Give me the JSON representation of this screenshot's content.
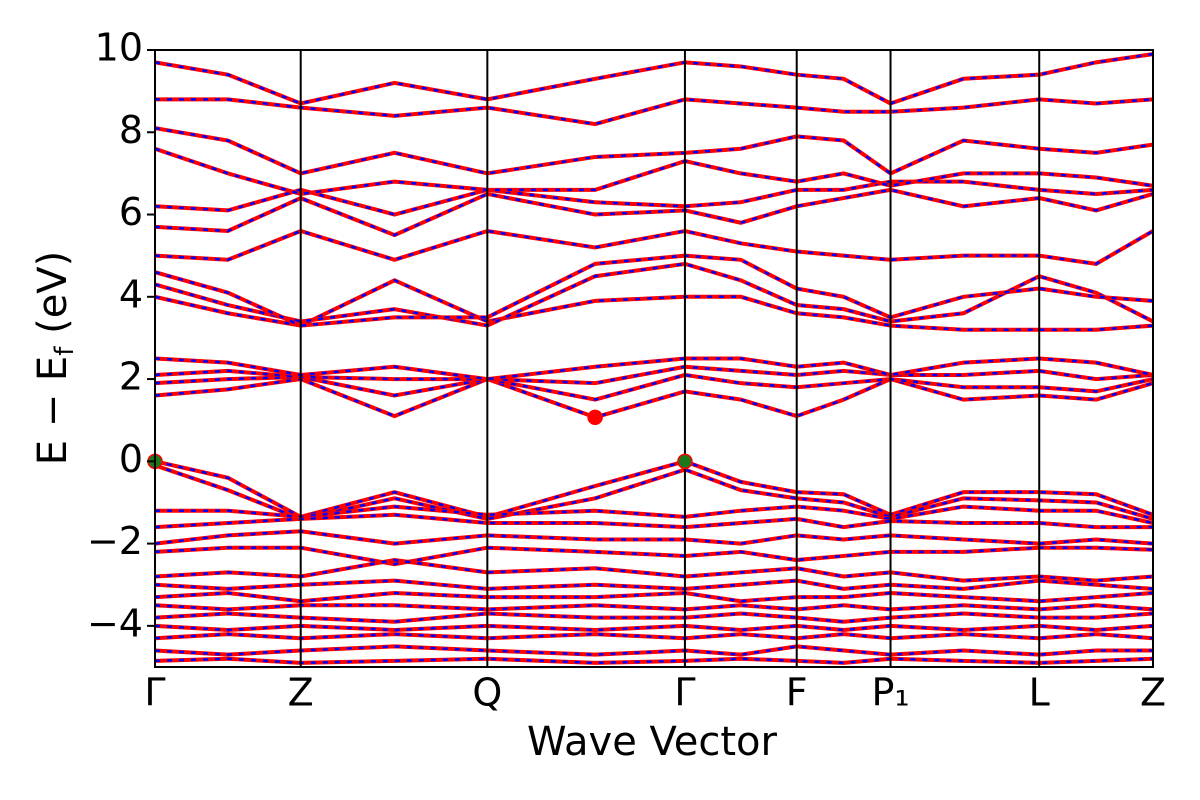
{
  "chart_data": {
    "type": "bandstructure",
    "xlabel": "Wave Vector",
    "ylabel_parts": [
      "E − E",
      "f",
      " (eV)"
    ],
    "xlim": [
      0,
      1
    ],
    "ylim": [
      -5,
      10
    ],
    "xticks": [
      {
        "value": 0,
        "label": "Γ"
      },
      {
        "value": 0.146,
        "label": "Z"
      },
      {
        "value": 0.333,
        "label": "Q"
      },
      {
        "value": 0.531,
        "label": "Γ"
      },
      {
        "value": 0.643,
        "label": "F"
      },
      {
        "value": 0.737,
        "label": "P₁"
      },
      {
        "value": 0.886,
        "label": "L"
      },
      {
        "value": 1,
        "label": "Z"
      }
    ],
    "yticks": [
      {
        "value": -4,
        "label": "−4"
      },
      {
        "value": -2,
        "label": "−2"
      },
      0,
      2,
      4,
      6,
      8,
      10
    ],
    "x": [
      0,
      0.073,
      0.146,
      0.24,
      0.333,
      0.441,
      0.531,
      0.587,
      0.643,
      0.69,
      0.737,
      0.81,
      0.886,
      0.943,
      1
    ],
    "colors": [
      "#ff0000",
      "#0000ff"
    ],
    "bands": [
      [
        0,
        -0.4,
        -1.35,
        -0.75,
        -1.35,
        -0.6,
        0,
        -0.5,
        -0.75,
        -0.8,
        -1.3,
        -0.75,
        -0.75,
        -0.8,
        -1.3
      ],
      [
        -0.1,
        -0.7,
        -1.4,
        -0.9,
        -1.4,
        -0.9,
        -0.2,
        -0.7,
        -0.9,
        -1.0,
        -1.35,
        -0.9,
        -0.95,
        -1.0,
        -1.4
      ],
      [
        -1.2,
        -1.2,
        -1.35,
        -1.1,
        -1.3,
        -1.2,
        -1.35,
        -1.2,
        -1.1,
        -1.2,
        -1.4,
        -1.1,
        -1.2,
        -1.2,
        -1.5
      ],
      [
        -1.6,
        -1.5,
        -1.4,
        -1.3,
        -1.5,
        -1.5,
        -1.6,
        -1.5,
        -1.4,
        -1.6,
        -1.45,
        -1.5,
        -1.5,
        -1.6,
        -1.6
      ],
      [
        -2.0,
        -1.8,
        -1.7,
        -2.0,
        -1.8,
        -1.9,
        -1.9,
        -2.0,
        -1.8,
        -1.9,
        -1.8,
        -1.9,
        -2.0,
        -1.9,
        -2.0
      ],
      [
        -2.2,
        -2.1,
        -2.1,
        -2.5,
        -2.1,
        -2.2,
        -2.3,
        -2.2,
        -2.4,
        -2.3,
        -2.2,
        -2.2,
        -2.1,
        -2.1,
        -2.15
      ],
      [
        -2.8,
        -2.7,
        -2.8,
        -2.4,
        -2.7,
        -2.6,
        -2.8,
        -2.7,
        -2.6,
        -2.8,
        -2.7,
        -2.9,
        -2.8,
        -2.9,
        -2.8
      ],
      [
        -3.0,
        -3.1,
        -3.0,
        -2.9,
        -3.1,
        -3.0,
        -3.1,
        -3.0,
        -2.9,
        -3.1,
        -3.0,
        -3.1,
        -2.9,
        -3.0,
        -3.1
      ],
      [
        -3.3,
        -3.2,
        -3.4,
        -3.2,
        -3.3,
        -3.3,
        -3.2,
        -3.4,
        -3.3,
        -3.3,
        -3.2,
        -3.3,
        -3.4,
        -3.3,
        -3.2
      ],
      [
        -3.5,
        -3.6,
        -3.5,
        -3.5,
        -3.6,
        -3.5,
        -3.6,
        -3.5,
        -3.6,
        -3.5,
        -3.6,
        -3.5,
        -3.6,
        -3.5,
        -3.6
      ],
      [
        -3.8,
        -3.7,
        -3.8,
        -3.9,
        -3.7,
        -3.8,
        -3.8,
        -3.7,
        -3.8,
        -3.9,
        -3.8,
        -3.7,
        -3.8,
        -3.8,
        -3.7
      ],
      [
        -4.0,
        -4.1,
        -4.0,
        -4.1,
        -4.0,
        -4.1,
        -4.0,
        -4.1,
        -4.0,
        -4.1,
        -4.0,
        -4.1,
        -4.0,
        -4.1,
        -4.0
      ],
      [
        -4.3,
        -4.2,
        -4.3,
        -4.2,
        -4.3,
        -4.2,
        -4.3,
        -4.2,
        -4.3,
        -4.2,
        -4.3,
        -4.2,
        -4.3,
        -4.2,
        -4.3
      ],
      [
        -4.6,
        -4.7,
        -4.6,
        -4.5,
        -4.6,
        -4.7,
        -4.6,
        -4.7,
        -4.5,
        -4.6,
        -4.7,
        -4.6,
        -4.7,
        -4.6,
        -4.6
      ],
      [
        -4.85,
        -4.8,
        -4.9,
        -4.85,
        -4.8,
        -4.9,
        -4.85,
        -4.8,
        -4.85,
        -4.9,
        -4.8,
        -4.85,
        -4.9,
        -4.85,
        -4.8
      ],
      [
        1.6,
        1.75,
        2.0,
        1.1,
        2.0,
        1.07,
        1.7,
        1.5,
        1.1,
        1.5,
        2.0,
        1.5,
        1.6,
        1.5,
        1.9
      ],
      [
        1.9,
        2.0,
        2.05,
        1.6,
        2.0,
        1.5,
        2.1,
        1.9,
        1.8,
        1.9,
        2.0,
        1.8,
        1.8,
        1.7,
        2.0
      ],
      [
        2.1,
        2.2,
        2.05,
        2.0,
        2.0,
        1.9,
        2.3,
        2.2,
        2.1,
        2.2,
        2.1,
        2.1,
        2.2,
        2.0,
        2.1
      ],
      [
        2.5,
        2.4,
        2.1,
        2.3,
        2.0,
        2.3,
        2.5,
        2.5,
        2.3,
        2.4,
        2.1,
        2.4,
        2.5,
        2.4,
        2.1
      ],
      [
        4.0,
        3.6,
        3.3,
        4.4,
        3.4,
        3.9,
        4.0,
        4.0,
        3.6,
        3.5,
        3.3,
        3.2,
        3.2,
        3.2,
        3.3
      ],
      [
        4.3,
        3.8,
        3.4,
        3.7,
        3.3,
        4.5,
        4.8,
        4.4,
        3.8,
        3.7,
        3.4,
        3.6,
        4.5,
        4.1,
        3.4
      ],
      [
        4.6,
        4.1,
        3.3,
        3.5,
        3.5,
        4.8,
        5.0,
        4.9,
        4.2,
        4.0,
        3.5,
        4.0,
        4.2,
        4.0,
        3.9
      ],
      [
        5.0,
        4.9,
        5.6,
        4.9,
        5.6,
        5.2,
        5.6,
        5.3,
        5.1,
        5.0,
        4.9,
        5.0,
        5.0,
        4.8,
        5.6
      ],
      [
        5.7,
        5.6,
        6.4,
        5.5,
        6.5,
        6.0,
        6.1,
        5.8,
        6.2,
        6.4,
        6.6,
        6.2,
        6.4,
        6.1,
        6.5
      ],
      [
        6.2,
        6.1,
        6.6,
        6.0,
        6.6,
        6.3,
        6.2,
        6.3,
        6.6,
        6.6,
        6.8,
        6.8,
        6.6,
        6.5,
        6.6
      ],
      [
        7.6,
        7.0,
        6.5,
        6.8,
        6.6,
        6.6,
        7.3,
        7.0,
        6.8,
        7.0,
        6.7,
        7.0,
        7.0,
        6.9,
        6.7
      ],
      [
        8.1,
        7.8,
        7.0,
        7.5,
        7.0,
        7.4,
        7.5,
        7.6,
        7.9,
        7.8,
        7.0,
        7.8,
        7.6,
        7.5,
        7.7
      ],
      [
        8.8,
        8.8,
        8.6,
        8.4,
        8.6,
        8.2,
        8.8,
        8.7,
        8.6,
        8.5,
        8.5,
        8.6,
        8.8,
        8.7,
        8.8
      ],
      [
        9.7,
        9.4,
        8.7,
        9.2,
        8.8,
        9.3,
        9.7,
        9.6,
        9.4,
        9.3,
        8.7,
        9.3,
        9.4,
        9.7,
        9.9
      ]
    ],
    "markers": [
      {
        "x": 0,
        "y": 0,
        "color": "#1a7a1a"
      },
      {
        "x": 0.531,
        "y": 0,
        "color": "#1a7a1a"
      },
      {
        "x": 0.441,
        "y": 1.07,
        "color": "#ff0000"
      }
    ]
  }
}
